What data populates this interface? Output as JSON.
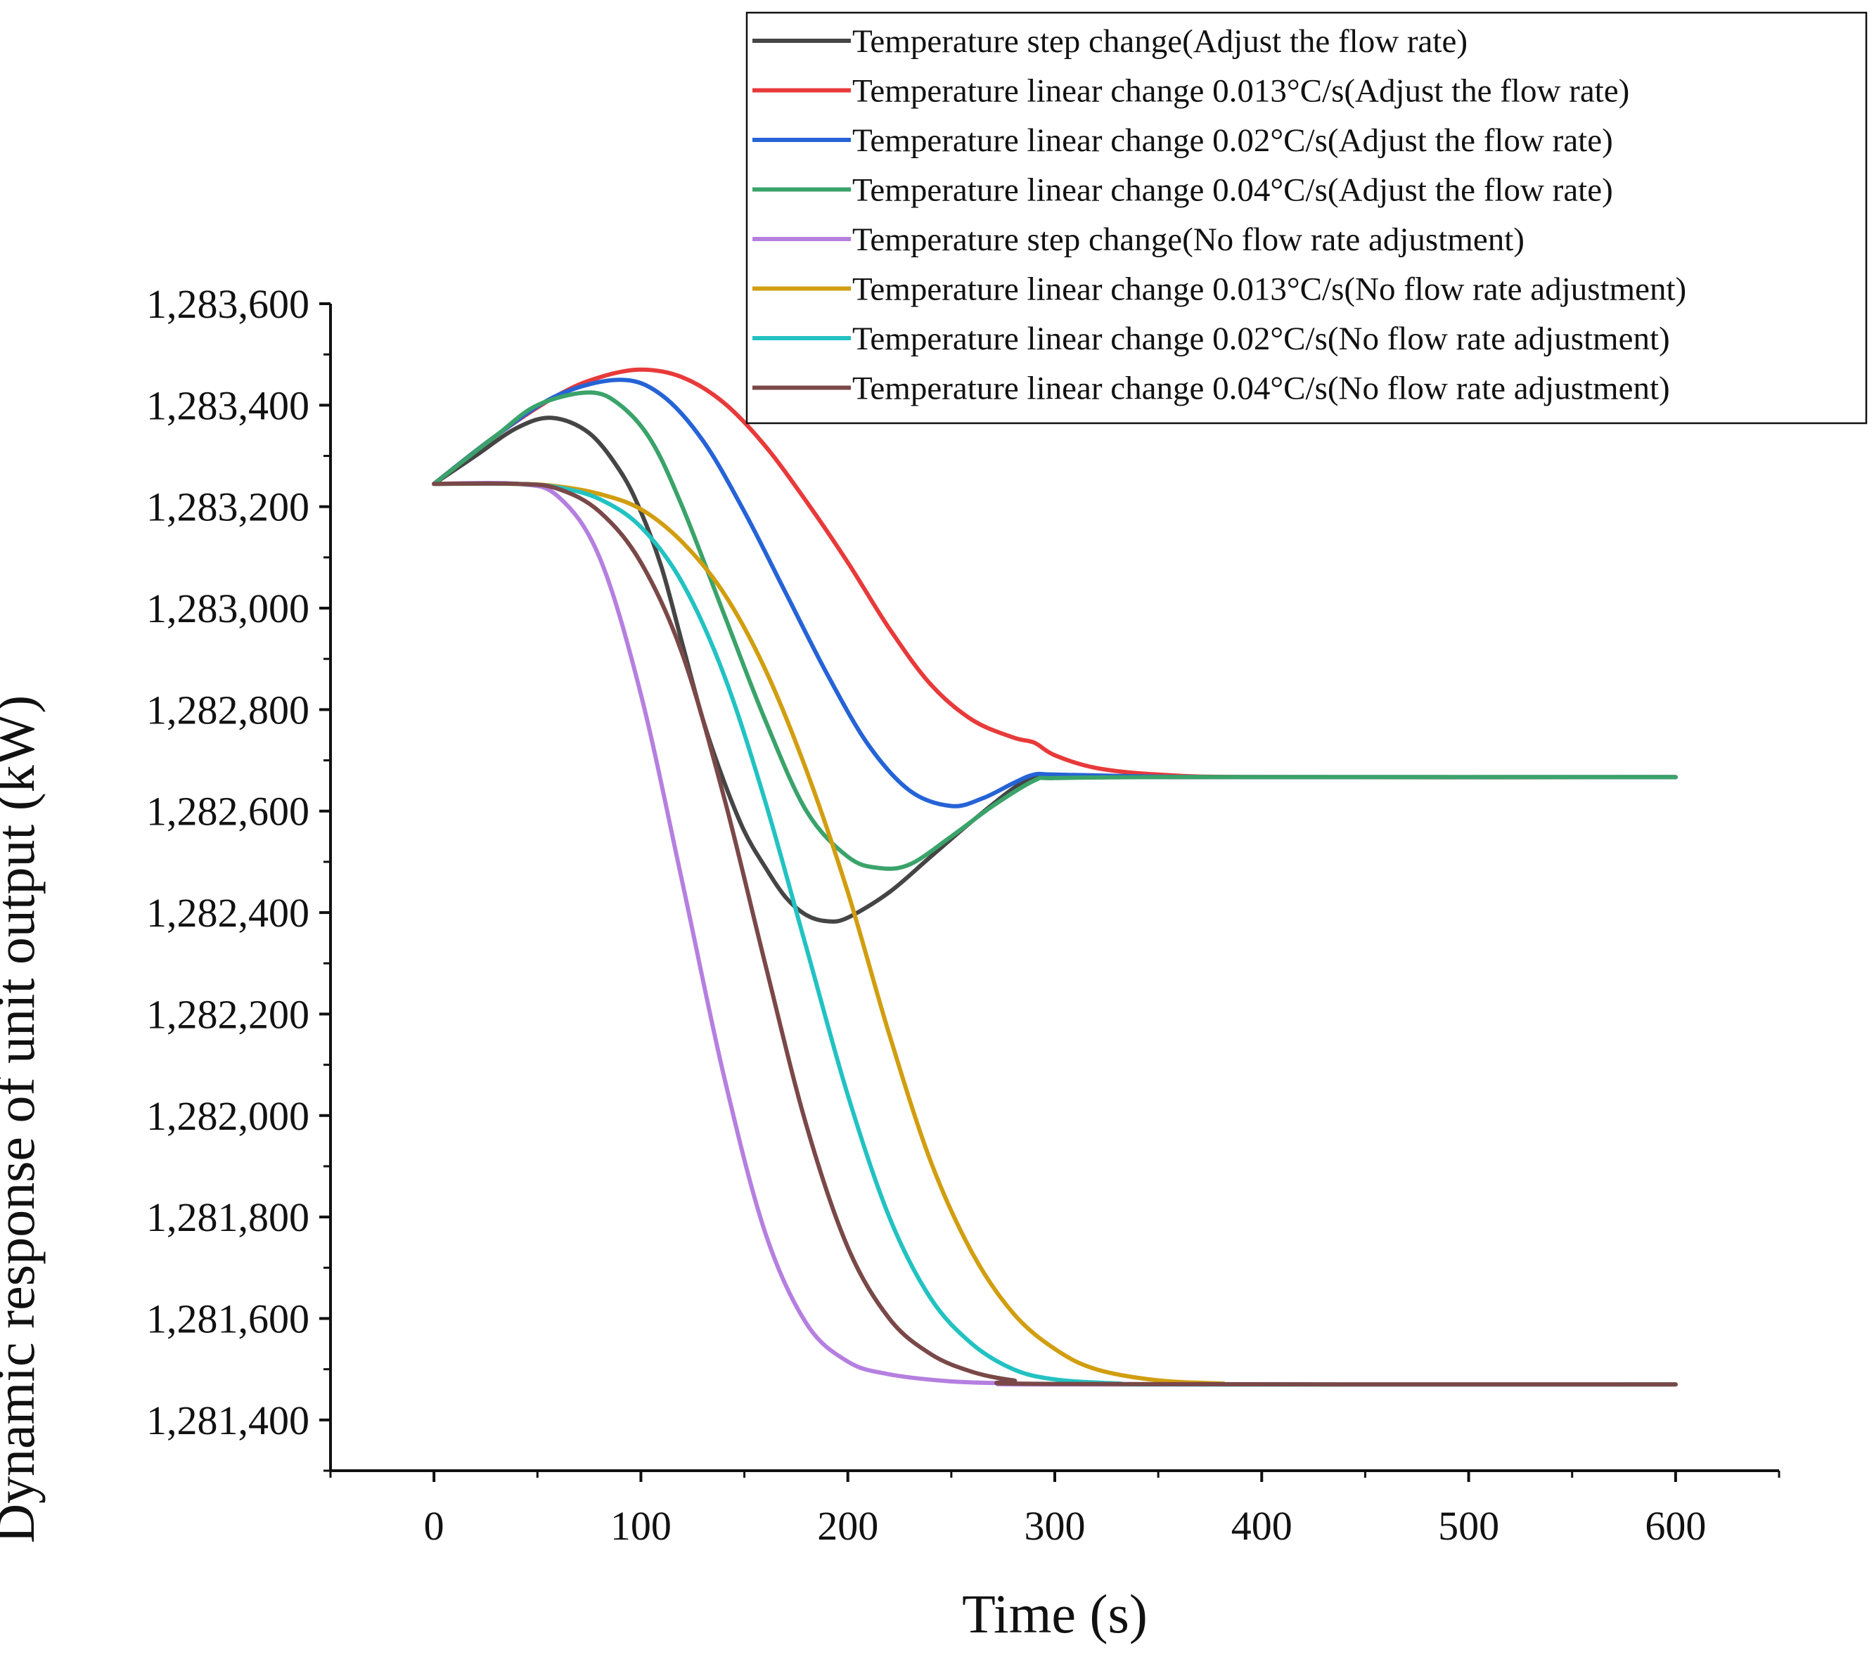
{
  "chart_data": {
    "type": "line",
    "title": "",
    "xlabel": "Time (s)",
    "ylabel": "Dynamic response of unit output (kW)",
    "xlim": [
      -50,
      650
    ],
    "ylim": [
      1281300,
      1283600
    ],
    "x_ticks": [
      0,
      100,
      200,
      300,
      400,
      500,
      600
    ],
    "x_tick_labels": [
      "0",
      "100",
      "200",
      "300",
      "400",
      "500",
      "600"
    ],
    "y_ticks": [
      1281400,
      1281600,
      1281800,
      1282000,
      1282200,
      1282400,
      1282600,
      1282800,
      1283000,
      1283200,
      1283400,
      1283600
    ],
    "y_tick_labels": [
      "1,281,400",
      "1,281,600",
      "1,281,800",
      "1,282,000",
      "1,282,200",
      "1,282,400",
      "1,282,600",
      "1,282,800",
      "1,283,000",
      "1,283,200",
      "1,283,400",
      "1,283,600"
    ],
    "grid": false,
    "legend_position": "top-right",
    "series": [
      {
        "name": "Temperature step change(Adjust the flow rate)",
        "color": "#454545",
        "x": [
          0,
          20,
          40,
          57,
          75,
          90,
          100,
          110,
          120,
          130,
          140,
          150,
          160,
          170,
          180,
          190,
          200,
          220,
          240,
          260,
          280,
          290,
          300,
          350,
          400,
          600
        ],
        "y": [
          1283245,
          1283300,
          1283355,
          1283375,
          1283345,
          1283270,
          1283190,
          1283080,
          1282930,
          1282780,
          1282660,
          1282560,
          1282490,
          1282430,
          1282395,
          1282383,
          1282390,
          1282440,
          1282510,
          1282580,
          1282645,
          1282665,
          1282668,
          1282667,
          1282667,
          1282667
        ]
      },
      {
        "name": "Temperature linear change 0.013°C/s(Adjust the flow rate)",
        "color": "#e83a3a",
        "x": [
          0,
          30,
          60,
          80,
          100,
          120,
          140,
          160,
          180,
          200,
          220,
          240,
          260,
          280,
          290,
          300,
          320,
          350,
          400,
          600
        ],
        "y": [
          1283245,
          1283340,
          1283420,
          1283455,
          1283470,
          1283455,
          1283405,
          1283320,
          1283210,
          1283090,
          1282960,
          1282850,
          1282780,
          1282745,
          1282735,
          1282710,
          1282685,
          1282672,
          1282667,
          1282667
        ]
      },
      {
        "name": "Temperature linear change 0.02°C/s(Adjust the flow rate)",
        "color": "#2563d6",
        "x": [
          0,
          30,
          60,
          90,
          110,
          130,
          150,
          170,
          190,
          210,
          230,
          250,
          265,
          280,
          290,
          300,
          350,
          400,
          600
        ],
        "y": [
          1283245,
          1283340,
          1283420,
          1283450,
          1283420,
          1283330,
          1283190,
          1283030,
          1282870,
          1282730,
          1282640,
          1282610,
          1282625,
          1282655,
          1282672,
          1282672,
          1282668,
          1282667,
          1282667
        ]
      },
      {
        "name": "Temperature linear change 0.04°C/s(Adjust the flow rate)",
        "color": "#3aa36a",
        "x": [
          0,
          30,
          50,
          75,
          90,
          105,
          120,
          140,
          160,
          180,
          200,
          215,
          230,
          250,
          270,
          290,
          300,
          350,
          400,
          600
        ],
        "y": [
          1283245,
          1283340,
          1283400,
          1283425,
          1283400,
          1283330,
          1283200,
          1282990,
          1282780,
          1282600,
          1282510,
          1282488,
          1282495,
          1282550,
          1282610,
          1282660,
          1282665,
          1282667,
          1282667,
          1282667
        ]
      },
      {
        "name": "Temperature step change(No flow rate adjustment)",
        "color": "#b57fe0",
        "x": [
          0,
          40,
          60,
          80,
          100,
          120,
          140,
          160,
          180,
          200,
          220,
          250,
          280,
          300,
          600
        ],
        "y": [
          1283245,
          1283245,
          1283220,
          1283100,
          1282830,
          1282460,
          1282080,
          1281770,
          1281590,
          1281515,
          1281490,
          1281476,
          1281472,
          1281470,
          1281470
        ]
      },
      {
        "name": "Temperature linear change 0.013°C/s(No flow rate adjustment)",
        "color": "#d19e10",
        "x": [
          0,
          40,
          60,
          80,
          100,
          120,
          140,
          160,
          180,
          200,
          220,
          240,
          260,
          280,
          300,
          320,
          350,
          380,
          400,
          600
        ],
        "y": [
          1283245,
          1283245,
          1283240,
          1283225,
          1283195,
          1283130,
          1283030,
          1282880,
          1282680,
          1282440,
          1282160,
          1281910,
          1281730,
          1281610,
          1281540,
          1281500,
          1281478,
          1281472,
          1281470,
          1281470
        ]
      },
      {
        "name": "Temperature linear change 0.02°C/s(No flow rate adjustment)",
        "color": "#22c2c2",
        "x": [
          0,
          40,
          60,
          80,
          100,
          120,
          140,
          160,
          180,
          200,
          220,
          240,
          260,
          280,
          300,
          330,
          360,
          600
        ],
        "y": [
          1283245,
          1283245,
          1283238,
          1283215,
          1283160,
          1283050,
          1282870,
          1282620,
          1282330,
          1282040,
          1281800,
          1281640,
          1281550,
          1281500,
          1281480,
          1281472,
          1281470,
          1281470
        ]
      },
      {
        "name": "Temperature linear change 0.04°C/s(No flow rate adjustment)",
        "color": "#7a4848",
        "x": [
          0,
          40,
          60,
          80,
          100,
          120,
          140,
          160,
          180,
          200,
          220,
          240,
          260,
          280,
          300,
          600
        ],
        "y": [
          1283245,
          1283245,
          1283235,
          1283190,
          1283090,
          1282910,
          1282630,
          1282300,
          1281980,
          1281740,
          1281600,
          1281530,
          1281495,
          1281478,
          1281471,
          1281470
        ]
      }
    ]
  }
}
